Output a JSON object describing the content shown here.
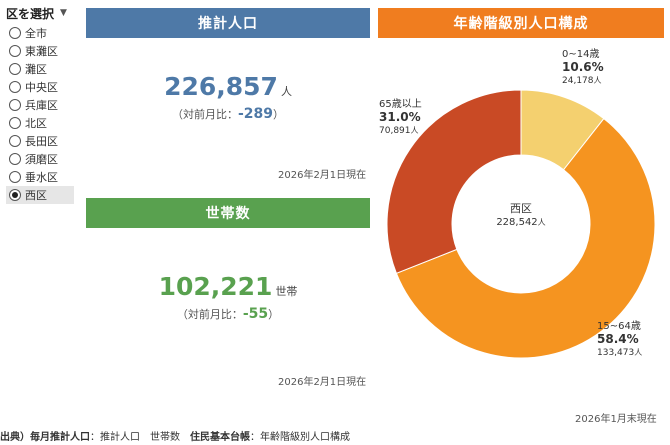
{
  "sidebar": {
    "title": "区を選択",
    "items": [
      "全市",
      "東灘区",
      "灘区",
      "中央区",
      "兵庫区",
      "北区",
      "長田区",
      "須磨区",
      "垂水区",
      "西区"
    ],
    "selected_index": 9
  },
  "population": {
    "header": "推計人口",
    "value": "226,857",
    "unit": "人",
    "diff_prefix": "（対前月比：",
    "diff_value": "-289",
    "diff_suffix": "）",
    "as_of": "2026年2月1日現在"
  },
  "households": {
    "header": "世帯数",
    "value": "102,221",
    "unit": "世帯",
    "diff_prefix": "（対前月比：",
    "diff_value": "-55",
    "diff_suffix": "）",
    "as_of": "2026年2月1日現在"
  },
  "age_chart": {
    "header": "年齢階級別人口構成",
    "as_of": "2026年1月末現在",
    "center_name": "西区",
    "center_value": "228,542",
    "center_unit": "人",
    "segments": [
      {
        "label": "0~14歳",
        "pct": "10.6%",
        "people": "24,178",
        "unit": "人",
        "color": "#f4d06f"
      },
      {
        "label": "15~64歳",
        "pct": "58.4%",
        "people": "133,473",
        "unit": "人",
        "color": "#f59420"
      },
      {
        "label": "65歳以上",
        "pct": "31.0%",
        "people": "70,891",
        "unit": "人",
        "color": "#c94a25"
      }
    ]
  },
  "chart_data": {
    "type": "pie",
    "categories": [
      "0~14歳",
      "15~64歳",
      "65歳以上"
    ],
    "values": [
      10.6,
      58.4,
      31.0
    ],
    "counts": [
      24178,
      133473,
      70891
    ],
    "title": "年齢階級別人口構成"
  },
  "footer": {
    "source_label": "出典）",
    "b1": "毎月推計人口",
    "t1": "：推計人口　世帯数　",
    "b2": "住民基本台帳",
    "t2": "：年齢階級別人口構成"
  }
}
